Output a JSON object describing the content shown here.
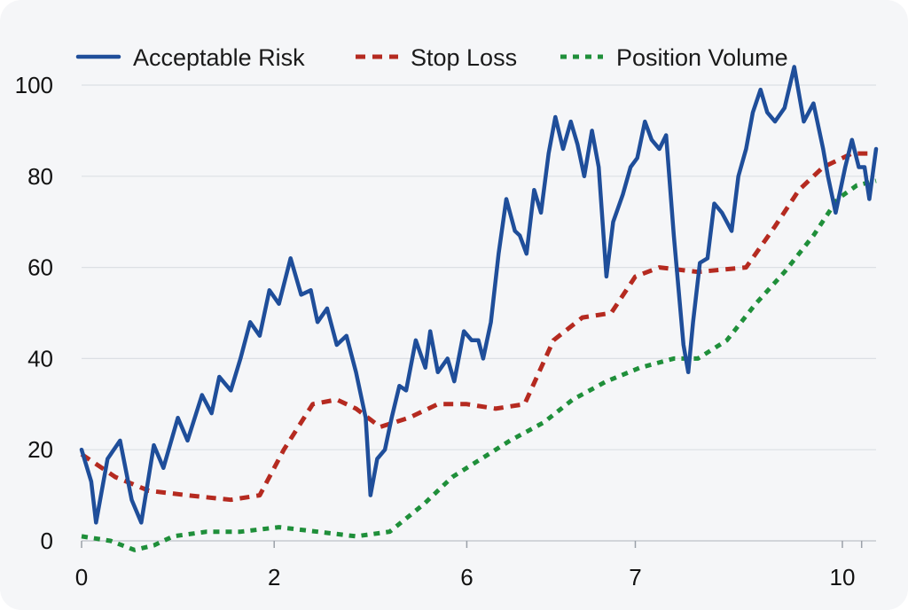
{
  "chart_data": {
    "type": "line",
    "title": "",
    "xlabel": "",
    "ylabel": "",
    "ylim": [
      0,
      100
    ],
    "x_ticks": [
      {
        "label": "0",
        "pos": 0
      },
      {
        "label": "2",
        "pos": 2
      },
      {
        "label": "6",
        "pos": 4
      },
      {
        "label": "7",
        "pos": 5.75
      },
      {
        "label": "10",
        "pos": 7.9
      }
    ],
    "y_ticks": [
      "0",
      "20",
      "40",
      "60",
      "80",
      "100"
    ],
    "grid": "horizontal",
    "legend_position": "top",
    "series": [
      {
        "name": "Acceptable Risk",
        "color": "#1f4e9a",
        "style": "solid",
        "points": [
          [
            0,
            20
          ],
          [
            0.1,
            13
          ],
          [
            0.15,
            4
          ],
          [
            0.27,
            18
          ],
          [
            0.4,
            22
          ],
          [
            0.52,
            9
          ],
          [
            0.62,
            4
          ],
          [
            0.75,
            21
          ],
          [
            0.85,
            16
          ],
          [
            1.0,
            27
          ],
          [
            1.1,
            22
          ],
          [
            1.25,
            32
          ],
          [
            1.35,
            28
          ],
          [
            1.43,
            36
          ],
          [
            1.55,
            33
          ],
          [
            1.65,
            40
          ],
          [
            1.75,
            48
          ],
          [
            1.85,
            45
          ],
          [
            1.95,
            55
          ],
          [
            2.05,
            52
          ],
          [
            2.17,
            62
          ],
          [
            2.28,
            54
          ],
          [
            2.38,
            55
          ],
          [
            2.45,
            48
          ],
          [
            2.55,
            51
          ],
          [
            2.65,
            43
          ],
          [
            2.75,
            45
          ],
          [
            2.85,
            37
          ],
          [
            2.95,
            27
          ],
          [
            3.0,
            10
          ],
          [
            3.07,
            18
          ],
          [
            3.15,
            20
          ],
          [
            3.22,
            27
          ],
          [
            3.3,
            34
          ],
          [
            3.37,
            33
          ],
          [
            3.47,
            44
          ],
          [
            3.57,
            38
          ],
          [
            3.62,
            46
          ],
          [
            3.7,
            37
          ],
          [
            3.8,
            40
          ],
          [
            3.87,
            35
          ],
          [
            3.97,
            46
          ],
          [
            4.05,
            44
          ],
          [
            4.12,
            44
          ],
          [
            4.17,
            40
          ],
          [
            4.25,
            48
          ],
          [
            4.33,
            63
          ],
          [
            4.41,
            75
          ],
          [
            4.5,
            68
          ],
          [
            4.55,
            67
          ],
          [
            4.62,
            63
          ],
          [
            4.7,
            77
          ],
          [
            4.77,
            72
          ],
          [
            4.85,
            85
          ],
          [
            4.92,
            93
          ],
          [
            5.0,
            86
          ],
          [
            5.08,
            92
          ],
          [
            5.15,
            87
          ],
          [
            5.22,
            80
          ],
          [
            5.3,
            90
          ],
          [
            5.37,
            82
          ],
          [
            5.45,
            58
          ],
          [
            5.52,
            70
          ],
          [
            5.62,
            76
          ],
          [
            5.7,
            82
          ],
          [
            5.77,
            84
          ],
          [
            5.85,
            92
          ],
          [
            5.92,
            88
          ],
          [
            6.0,
            86
          ],
          [
            6.07,
            89
          ],
          [
            6.15,
            67
          ],
          [
            6.25,
            43
          ],
          [
            6.3,
            37
          ],
          [
            6.35,
            48
          ],
          [
            6.42,
            61
          ],
          [
            6.5,
            62
          ],
          [
            6.57,
            74
          ],
          [
            6.65,
            72
          ],
          [
            6.75,
            68
          ],
          [
            6.82,
            80
          ],
          [
            6.9,
            86
          ],
          [
            6.97,
            94
          ],
          [
            7.05,
            99
          ],
          [
            7.12,
            94
          ],
          [
            7.2,
            92
          ],
          [
            7.3,
            95
          ],
          [
            7.4,
            104
          ],
          [
            7.5,
            92
          ],
          [
            7.6,
            96
          ],
          [
            7.7,
            86
          ],
          [
            7.75,
            80
          ],
          [
            7.83,
            72
          ],
          [
            7.93,
            82
          ],
          [
            8.0,
            88
          ],
          [
            8.07,
            82
          ],
          [
            8.13,
            82
          ],
          [
            8.18,
            75
          ],
          [
            8.25,
            86
          ]
        ]
      },
      {
        "name": "Stop Loss",
        "color": "#b52a20",
        "style": "dashed",
        "points": [
          [
            0,
            19
          ],
          [
            0.35,
            14
          ],
          [
            0.7,
            11
          ],
          [
            1.1,
            10
          ],
          [
            1.55,
            9
          ],
          [
            1.85,
            10
          ],
          [
            2.1,
            20
          ],
          [
            2.4,
            30
          ],
          [
            2.65,
            31
          ],
          [
            2.85,
            29
          ],
          [
            3.1,
            25
          ],
          [
            3.4,
            27
          ],
          [
            3.7,
            30
          ],
          [
            4.0,
            30
          ],
          [
            4.3,
            29
          ],
          [
            4.6,
            30
          ],
          [
            4.9,
            44
          ],
          [
            5.2,
            49
          ],
          [
            5.5,
            50
          ],
          [
            5.75,
            58
          ],
          [
            6.0,
            60
          ],
          [
            6.4,
            59
          ],
          [
            6.9,
            60
          ],
          [
            7.2,
            69
          ],
          [
            7.45,
            77
          ],
          [
            7.7,
            82
          ],
          [
            8.0,
            85
          ],
          [
            8.25,
            85
          ]
        ]
      },
      {
        "name": "Position Volume",
        "color": "#1f8f3a",
        "style": "dotted",
        "points": [
          [
            0,
            1
          ],
          [
            0.3,
            0
          ],
          [
            0.55,
            -2
          ],
          [
            0.75,
            -1
          ],
          [
            0.95,
            1
          ],
          [
            1.3,
            2
          ],
          [
            1.65,
            2
          ],
          [
            2.05,
            3
          ],
          [
            2.45,
            2
          ],
          [
            2.85,
            1
          ],
          [
            3.2,
            2
          ],
          [
            3.55,
            8
          ],
          [
            3.85,
            14
          ],
          [
            4.15,
            18
          ],
          [
            4.45,
            22
          ],
          [
            4.8,
            26
          ],
          [
            5.1,
            31
          ],
          [
            5.45,
            35
          ],
          [
            5.8,
            38
          ],
          [
            6.15,
            40
          ],
          [
            6.4,
            40
          ],
          [
            6.7,
            44
          ],
          [
            7.0,
            52
          ],
          [
            7.3,
            59
          ],
          [
            7.6,
            67
          ],
          [
            7.85,
            75
          ],
          [
            8.05,
            78
          ],
          [
            8.25,
            79
          ]
        ]
      }
    ]
  }
}
